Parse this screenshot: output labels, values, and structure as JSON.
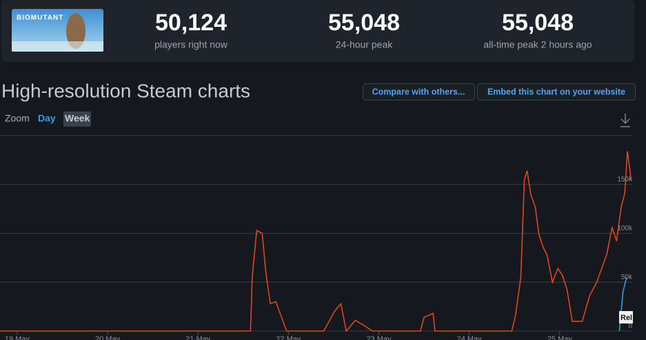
{
  "header": {
    "logo_text": "BIOMUTANT",
    "stats": [
      {
        "value": "50,124",
        "label": "players right now"
      },
      {
        "value": "55,048",
        "label": "24-hour peak"
      },
      {
        "value": "55,048",
        "label": "all-time peak 2 hours ago"
      }
    ]
  },
  "title": "High-resolution Steam charts",
  "buttons": [
    "Compare with others...",
    "Embed this chart on your website"
  ],
  "zoom": {
    "label": "Zoom",
    "options": [
      "Day",
      "Week"
    ]
  },
  "chart_data": {
    "type": "line",
    "annotation": "Rel",
    "xlim": [
      -0.19,
      6.81
    ],
    "xticks": [
      {
        "value": 0,
        "label": "19 May"
      },
      {
        "value": 1,
        "label": "20 May"
      },
      {
        "value": 2,
        "label": "21 May"
      },
      {
        "value": 3,
        "label": "22 May"
      },
      {
        "value": 4,
        "label": "23 May"
      },
      {
        "value": 5,
        "label": "24 May"
      },
      {
        "value": 6,
        "label": "25 May"
      }
    ],
    "ylim": [
      0,
      200000
    ],
    "yticks": [
      {
        "value": 0,
        "label": "0"
      },
      {
        "value": 50000,
        "label": "50k"
      },
      {
        "value": 100000,
        "label": "100k"
      },
      {
        "value": 150000,
        "label": "150k"
      }
    ],
    "grid": true,
    "series": [
      {
        "color": "#e0451c",
        "x": [
          -0.19,
          2.58,
          2.6,
          2.65,
          2.71,
          2.75,
          2.8,
          2.86,
          2.92,
          2.98,
          3.39,
          3.51,
          3.58,
          3.64,
          3.74,
          3.85,
          3.93,
          4.46,
          4.5,
          4.6,
          4.62,
          5.47,
          5.51,
          5.57,
          5.61,
          5.64,
          5.68,
          5.73,
          5.77,
          5.82,
          5.86,
          5.92,
          5.98,
          6.03,
          6.08,
          6.14,
          6.25,
          6.33,
          6.41,
          6.52,
          6.58,
          6.63,
          6.68,
          6.72,
          6.75,
          6.79
        ],
        "values": [
          0,
          0,
          56000,
          103000,
          100000,
          60000,
          28000,
          30000,
          15000,
          0,
          0,
          20000,
          28000,
          0,
          11000,
          5000,
          0,
          0,
          14000,
          18000,
          0,
          0,
          15000,
          55000,
          155000,
          164000,
          140000,
          127000,
          99000,
          85000,
          78000,
          50000,
          64000,
          57000,
          43000,
          10000,
          10000,
          36000,
          50000,
          78000,
          106000,
          92000,
          127000,
          141000,
          184000,
          155000
        ]
      },
      {
        "color": "#3d9be0",
        "x": [
          6.66,
          6.7,
          6.74
        ],
        "values": [
          0,
          40000,
          55000
        ]
      }
    ]
  }
}
